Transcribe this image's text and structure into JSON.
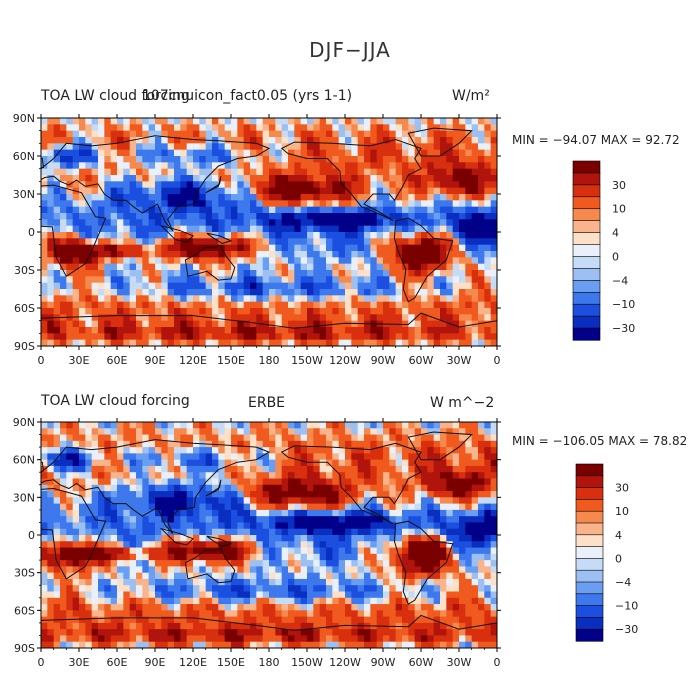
{
  "main_title": "DJF−JJA",
  "panels": [
    {
      "left_title_a": "TOA LW cloud forcing",
      "left_title_b": "107cnuicon_fact0.05 (yrs 1-1)",
      "center_title": "",
      "units": "W/m²",
      "stats": "MIN = −94.07 MAX =  92.72",
      "colorbar_labels": [
        "30",
        "10",
        "4",
        "0",
        "−4",
        "−10",
        "−30"
      ]
    },
    {
      "left_title_a": "TOA LW cloud forcing",
      "left_title_b": "",
      "center_title": "ERBE",
      "units": "W  m^−2",
      "stats": "MIN = −106.05 MAX =  78.82",
      "colorbar_labels": [
        "30",
        "10",
        "4",
        "0",
        "−4",
        "−10",
        "−30"
      ]
    }
  ],
  "axes": {
    "lat_ticks": [
      "90N",
      "60N",
      "30N",
      "0",
      "30S",
      "60S",
      "90S"
    ],
    "lon_ticks": [
      "0",
      "30E",
      "60E",
      "90E",
      "120E",
      "150E",
      "180",
      "150W",
      "120W",
      "90W",
      "60W",
      "30W",
      "0"
    ]
  },
  "colorbar_colors": [
    "#7a0000",
    "#b0140c",
    "#d8300e",
    "#f05a1e",
    "#f68a4e",
    "#f9b48c",
    "#fce0c8",
    "#e9f0fa",
    "#c6dcf6",
    "#9cc0f2",
    "#6a9ef0",
    "#3d78ec",
    "#1b4fe0",
    "#0a2fc0",
    "#000088"
  ],
  "chart_data": [
    {
      "type": "heatmap",
      "title": "TOA LW cloud forcing",
      "subtitle": "107cnuicon_fact0.05 (yrs 1-1)",
      "xlabel": "",
      "ylabel": "",
      "xlim": [
        0,
        360
      ],
      "ylim": [
        -90,
        90
      ],
      "units": "W/m²",
      "min": -94.07,
      "max": 92.72,
      "contour_levels": [
        -30,
        -10,
        -4,
        0,
        4,
        10,
        30
      ]
    },
    {
      "type": "heatmap",
      "title": "TOA LW cloud forcing",
      "subtitle": "ERBE",
      "xlabel": "",
      "ylabel": "",
      "xlim": [
        0,
        360
      ],
      "ylim": [
        -90,
        90
      ],
      "units": "W  m^−2",
      "min": -106.05,
      "max": 78.82,
      "contour_levels": [
        -30,
        -10,
        -4,
        0,
        4,
        10,
        30
      ]
    }
  ]
}
